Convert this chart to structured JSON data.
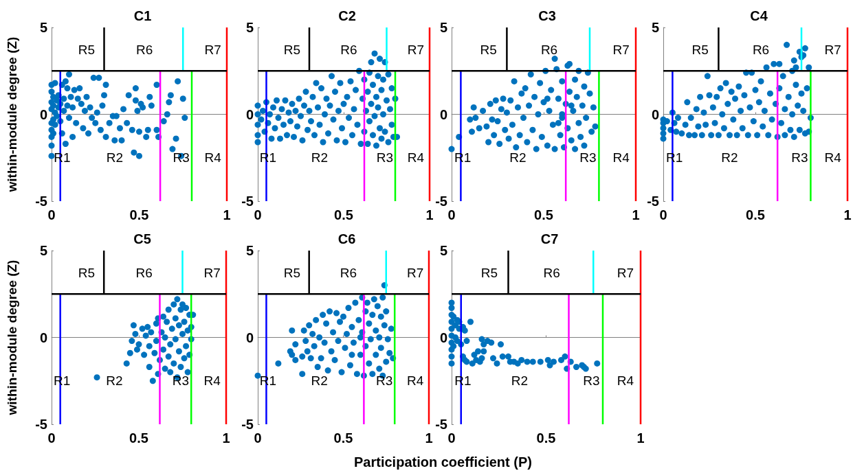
{
  "chart_data": [
    {
      "type": "scatter",
      "title": "C1",
      "ylabel": "within-module degree (Z)",
      "xlim": [
        0,
        1
      ],
      "ylim": [
        -5,
        5
      ],
      "xticks": [
        0,
        0.5,
        1
      ],
      "yticks": [
        -5,
        0,
        5
      ],
      "series": [
        {
          "marker": "circle",
          "color": "#0072bd",
          "x": [
            0,
            0,
            0,
            0,
            0,
            0,
            0,
            0,
            0,
            0.01,
            0.01,
            0.01,
            0.01,
            0.02,
            0.02,
            0.02,
            0.03,
            0.03,
            0.04,
            0.04,
            0.05,
            0.05,
            0.06,
            0.06,
            0.07,
            0.07,
            0.08,
            0.08,
            0.09,
            0.09,
            0.1,
            0.1,
            0.11,
            0.12,
            0.12,
            0.13,
            0.14,
            0.15,
            0.16,
            0.17,
            0.18,
            0.19,
            0.2,
            0.21,
            0.22,
            0.23,
            0.24,
            0.25,
            0.26,
            0.27,
            0.28,
            0.29,
            0.3,
            0.31,
            0.31,
            0.33,
            0.35,
            0.36,
            0.37,
            0.39,
            0.4,
            0.41,
            0.43,
            0.44,
            0.46,
            0.47,
            0.48,
            0.48,
            0.49,
            0.5,
            0.5,
            0.51,
            0.52,
            0.54,
            0.55,
            0.56,
            0.57,
            0.6,
            0.6,
            0.61,
            0.64,
            0.66,
            0.67,
            0.68,
            0.69,
            0.71,
            0.72,
            0.74,
            0.75,
            0.76
          ],
          "values": [
            -2.4,
            -1.8,
            -1.3,
            -0.9,
            -0.5,
            0.3,
            0.7,
            1.3,
            1.7,
            -1.1,
            -0.3,
            0.5,
            1.0,
            1.8,
            0.1,
            -0.6,
            0.8,
            -0.1,
            0.4,
            1.1,
            -0.4,
            0.6,
            -1.1,
            1.7,
            0.2,
            0.9,
            1.9,
            -1.7,
            1.5,
            0.5,
            2.3,
            -0.2,
            1.0,
            0.4,
            -1.3,
            1.4,
            -0.5,
            0.9,
            1.5,
            0.6,
            -0.8,
            0.2,
            1.0,
            -1.1,
            0.4,
            -0.2,
            2.1,
            -0.5,
            0.1,
            2.1,
            -0.9,
            0.5,
            1.1,
            -1.3,
            1.7,
            -0.5,
            -0.1,
            -1.5,
            -0.1,
            -0.8,
            -1.5,
            0.3,
            -0.5,
            1.1,
            -0.9,
            -2.2,
            1.5,
            0.8,
            0.2,
            -1.0,
            -2.4,
            0.6,
            0.4,
            -1.3,
            -0.9,
            1.0,
            0.5,
            -0.9,
            1.7,
            -1.3,
            -0.4,
            0.0,
            0.7,
            1.1,
            -2.0,
            -1.4,
            1.9,
            -2.4,
            0.9,
            -0.2
          ]
        },
        {
          "type": "line",
          "color": "#0000ff",
          "x": [
            0.05,
            0.05
          ],
          "values": [
            -5,
            2.5
          ]
        },
        {
          "type": "line",
          "color": "#ff00ff",
          "x": [
            0.62,
            0.62
          ],
          "values": [
            -5,
            2.5
          ]
        },
        {
          "type": "line",
          "color": "#00ff00",
          "x": [
            0.8,
            0.8
          ],
          "values": [
            -5,
            2.5
          ]
        },
        {
          "type": "line",
          "color": "#ff0000",
          "x": [
            1,
            1
          ],
          "values": [
            -5,
            5
          ]
        },
        {
          "type": "line",
          "color": "#000000",
          "x": [
            0.3,
            0.3
          ],
          "values": [
            2.5,
            5
          ]
        },
        {
          "type": "line",
          "color": "#00ffff",
          "x": [
            0.75,
            0.75
          ],
          "values": [
            2.5,
            5
          ]
        },
        {
          "type": "line",
          "color": "#000000",
          "x": [
            0,
            1
          ],
          "values": [
            2.5,
            2.5
          ]
        }
      ],
      "annotations": [
        "R1",
        "R2",
        "R3",
        "R4",
        "R5",
        "R6",
        "R7"
      ]
    },
    {
      "type": "scatter",
      "title": "C2",
      "xlim": [
        0,
        1
      ],
      "ylim": [
        -5,
        5
      ],
      "xticks": [
        0,
        0.5,
        1
      ],
      "yticks": [
        -5,
        0,
        5
      ],
      "series": [
        {
          "marker": "circle",
          "color": "#0072bd",
          "x": [
            0,
            0,
            0,
            0,
            0,
            0.02,
            0.03,
            0.04,
            0.05,
            0.06,
            0.07,
            0.08,
            0.09,
            0.1,
            0.11,
            0.12,
            0.13,
            0.14,
            0.15,
            0.16,
            0.17,
            0.18,
            0.19,
            0.2,
            0.21,
            0.22,
            0.23,
            0.24,
            0.25,
            0.26,
            0.27,
            0.28,
            0.29,
            0.3,
            0.31,
            0.32,
            0.33,
            0.34,
            0.35,
            0.36,
            0.37,
            0.38,
            0.39,
            0.4,
            0.41,
            0.42,
            0.43,
            0.44,
            0.45,
            0.46,
            0.47,
            0.48,
            0.49,
            0.5,
            0.51,
            0.52,
            0.53,
            0.54,
            0.55,
            0.56,
            0.57,
            0.58,
            0.59,
            0.6,
            0.61,
            0.62,
            0.62,
            0.63,
            0.64,
            0.64,
            0.65,
            0.65,
            0.66,
            0.66,
            0.67,
            0.67,
            0.68,
            0.68,
            0.69,
            0.69,
            0.7,
            0.7,
            0.71,
            0.71,
            0.72,
            0.72,
            0.73,
            0.73,
            0.74,
            0.74,
            0.75,
            0.76,
            0.76,
            0.77,
            0.78,
            0.78,
            0.79,
            0.8,
            0.81
          ],
          "values": [
            -1.6,
            -1.2,
            -0.6,
            0,
            0.5,
            -0.3,
            0.2,
            -1.0,
            0.7,
            -0.5,
            0.0,
            -1.4,
            0.4,
            -0.8,
            0.8,
            -0.2,
            -1.4,
            0.3,
            -0.6,
            0.8,
            -1.2,
            0.1,
            -0.4,
            0.6,
            -1.3,
            0.2,
            -0.7,
            0.9,
            -0.1,
            -1.5,
            0.5,
            1.3,
            -0.9,
            0.2,
            -0.4,
            1.0,
            -1.2,
            1.8,
            0.4,
            -0.6,
            1.5,
            -1.6,
            0.0,
            0.9,
            -1.1,
            0.5,
            2.2,
            -0.3,
            1.3,
            -1.5,
            0.2,
            1.8,
            -0.8,
            0.6,
            -1.6,
            1.0,
            -0.2,
            1.9,
            -1.2,
            0.3,
            1.4,
            -0.6,
            2.5,
            -1.7,
            0.9,
            -1.0,
            2.0,
            0.2,
            -1.7,
            1.3,
            -0.4,
            2.4,
            0.6,
            3.0,
            -1.2,
            1.7,
            3.5,
            -0.1,
            1.0,
            -1.8,
            2.2,
            0.4,
            3.2,
            -0.8,
            1.4,
            -1.4,
            0.0,
            2.0,
            3.0,
            -1.0,
            0.8,
            2.3,
            -1.6,
            0.3,
            1.5,
            -0.6,
            -1.3,
            0.9,
            -1.3
          ]
        },
        {
          "type": "line",
          "color": "#0000ff",
          "x": [
            0.05,
            0.05
          ],
          "values": [
            -5,
            2.5
          ]
        },
        {
          "type": "line",
          "color": "#ff00ff",
          "x": [
            0.62,
            0.62
          ],
          "values": [
            -5,
            2.5
          ]
        },
        {
          "type": "line",
          "color": "#00ff00",
          "x": [
            0.8,
            0.8
          ],
          "values": [
            -5,
            2.5
          ]
        },
        {
          "type": "line",
          "color": "#ff0000",
          "x": [
            1,
            1
          ],
          "values": [
            -5,
            5
          ]
        },
        {
          "type": "line",
          "color": "#000000",
          "x": [
            0.3,
            0.3
          ],
          "values": [
            2.5,
            5
          ]
        },
        {
          "type": "line",
          "color": "#00ffff",
          "x": [
            0.75,
            0.75
          ],
          "values": [
            2.5,
            5
          ]
        },
        {
          "type": "line",
          "color": "#000000",
          "x": [
            0,
            1
          ],
          "values": [
            2.5,
            2.5
          ]
        }
      ],
      "annotations": [
        "R1",
        "R2",
        "R3",
        "R4",
        "R5",
        "R6",
        "R7"
      ]
    },
    {
      "type": "scatter",
      "title": "C3",
      "xlim": [
        0,
        1
      ],
      "ylim": [
        -5,
        5
      ],
      "xticks": [
        0,
        0.5,
        1
      ],
      "yticks": [
        -5,
        0,
        5
      ],
      "series": [
        {
          "marker": "circle",
          "color": "#0072bd",
          "x": [
            0,
            0.04,
            0.1,
            0.11,
            0.12,
            0.13,
            0.15,
            0.17,
            0.19,
            0.2,
            0.21,
            0.22,
            0.23,
            0.24,
            0.25,
            0.26,
            0.27,
            0.28,
            0.29,
            0.3,
            0.31,
            0.32,
            0.33,
            0.34,
            0.35,
            0.36,
            0.37,
            0.38,
            0.39,
            0.4,
            0.41,
            0.42,
            0.43,
            0.44,
            0.45,
            0.46,
            0.47,
            0.48,
            0.49,
            0.5,
            0.51,
            0.52,
            0.53,
            0.54,
            0.55,
            0.56,
            0.56,
            0.57,
            0.58,
            0.59,
            0.6,
            0.6,
            0.61,
            0.62,
            0.63,
            0.63,
            0.64,
            0.64,
            0.65,
            0.66,
            0.67,
            0.67,
            0.68,
            0.69,
            0.69,
            0.7,
            0.71,
            0.72,
            0.72,
            0.73,
            0.74,
            0.75,
            0.76,
            0.77,
            0.78,
            0.6,
            0.65,
            0.58,
            0.52
          ],
          "values": [
            -2.0,
            -1.3,
            -0.3,
            -1.0,
            0.4,
            -0.2,
            -0.8,
            0.2,
            -0.7,
            -1.6,
            0.6,
            -0.3,
            -1.2,
            0.8,
            -0.4,
            -1.7,
            0.3,
            0.9,
            -0.9,
            0.1,
            -1.4,
            0.8,
            -0.6,
            1.9,
            -1.9,
            0.4,
            -1.2,
            1.2,
            -0.2,
            1.5,
            -1.6,
            0.5,
            2.3,
            -0.9,
            1.0,
            -2.0,
            0.0,
            1.8,
            -1.3,
            0.7,
            2.5,
            -1.8,
            0.2,
            1.4,
            -0.6,
            3.2,
            -2.0,
            2.6,
            0.9,
            -1.2,
            1.9,
            -0.2,
            -1.9,
            0.6,
            2.8,
            -0.8,
            1.3,
            2.9,
            -1.5,
            0.2,
            2.0,
            -2.0,
            1.0,
            -0.5,
            2.5,
            -1.3,
            0.5,
            1.6,
            -1.8,
            -0.2,
            2.4,
            1.2,
            -1.0,
            0.4,
            -0.7,
            0.0,
            0.5,
            -0.5,
            0.9
          ]
        },
        {
          "type": "line",
          "color": "#0000ff",
          "x": [
            0.05,
            0.05
          ],
          "values": [
            -5,
            2.5
          ]
        },
        {
          "type": "line",
          "color": "#ff00ff",
          "x": [
            0.62,
            0.62
          ],
          "values": [
            -5,
            2.5
          ]
        },
        {
          "type": "line",
          "color": "#00ff00",
          "x": [
            0.8,
            0.8
          ],
          "values": [
            -5,
            2.5
          ]
        },
        {
          "type": "line",
          "color": "#ff0000",
          "x": [
            1,
            1
          ],
          "values": [
            -5,
            5
          ]
        },
        {
          "type": "line",
          "color": "#000000",
          "x": [
            0.3,
            0.3
          ],
          "values": [
            2.5,
            5
          ]
        },
        {
          "type": "line",
          "color": "#00ffff",
          "x": [
            0.75,
            0.75
          ],
          "values": [
            2.5,
            5
          ]
        },
        {
          "type": "line",
          "color": "#000000",
          "x": [
            0,
            1
          ],
          "values": [
            2.5,
            2.5
          ]
        }
      ],
      "annotations": [
        "R1",
        "R2",
        "R3",
        "R4",
        "R5",
        "R6",
        "R7"
      ]
    },
    {
      "type": "scatter",
      "title": "C4",
      "xlim": [
        0,
        1
      ],
      "ylim": [
        -5,
        5
      ],
      "xticks": [
        0,
        0.5,
        1
      ],
      "yticks": [
        -5,
        0,
        5
      ],
      "series": [
        {
          "marker": "circle",
          "color": "#0072bd",
          "x": [
            0,
            0,
            0,
            0,
            0,
            0.02,
            0.04,
            0.05,
            0.06,
            0.07,
            0.08,
            0.1,
            0.12,
            0.13,
            0.14,
            0.15,
            0.17,
            0.18,
            0.19,
            0.2,
            0.21,
            0.22,
            0.23,
            0.24,
            0.25,
            0.26,
            0.27,
            0.28,
            0.29,
            0.3,
            0.31,
            0.32,
            0.33,
            0.34,
            0.35,
            0.36,
            0.37,
            0.38,
            0.39,
            0.4,
            0.41,
            0.42,
            0.43,
            0.44,
            0.45,
            0.46,
            0.47,
            0.48,
            0.49,
            0.5,
            0.51,
            0.52,
            0.53,
            0.54,
            0.55,
            0.56,
            0.57,
            0.58,
            0.59,
            0.6,
            0.61,
            0.62,
            0.63,
            0.63,
            0.64,
            0.65,
            0.66,
            0.66,
            0.67,
            0.68,
            0.69,
            0.7,
            0.7,
            0.71,
            0.71,
            0.72,
            0.72,
            0.73,
            0.74,
            0.74,
            0.75,
            0.75,
            0.76,
            0.76,
            0.77,
            0.77,
            0.78,
            0.79,
            0.79,
            0.8
          ],
          "values": [
            -1.4,
            -1.1,
            -0.8,
            -0.5,
            -0.3,
            -0.4,
            -0.9,
            0.1,
            -0.5,
            -1.0,
            -0.2,
            -1.1,
            -0.6,
            0.7,
            -1.2,
            -0.2,
            -1.2,
            0.3,
            -0.7,
            1.0,
            -1.2,
            0.1,
            -0.6,
            2.2,
            1.1,
            -1.2,
            0.4,
            -0.5,
            1.0,
            -1.2,
            1.5,
            0.0,
            -0.8,
            1.8,
            0.6,
            -1.2,
            1.3,
            -0.3,
            0.9,
            -1.2,
            1.6,
            0.2,
            -0.8,
            1.1,
            2.4,
            -1.2,
            0.4,
            2.4,
            -0.4,
            1.4,
            -1.2,
            0.7,
            1.9,
            -0.7,
            0.2,
            2.7,
            -1.2,
            1.2,
            -0.3,
            2.9,
            0.6,
            -1.3,
            2.9,
            1.5,
            -0.5,
            2.2,
            0.3,
            -1.2,
            4.0,
            1.0,
            -0.9,
            2.5,
            0.0,
            3.1,
            -1.3,
            1.7,
            2.7,
            0.5,
            3.6,
            -0.9,
            1.2,
            3.3,
            3.4,
            0.2,
            3.8,
            -1.1,
            1.5,
            2.7,
            -1.0,
            -0.2
          ]
        },
        {
          "type": "line",
          "color": "#0000ff",
          "x": [
            0.05,
            0.05
          ],
          "values": [
            -5,
            2.5
          ]
        },
        {
          "type": "line",
          "color": "#ff00ff",
          "x": [
            0.62,
            0.62
          ],
          "values": [
            -5,
            2.5
          ]
        },
        {
          "type": "line",
          "color": "#00ff00",
          "x": [
            0.8,
            0.8
          ],
          "values": [
            -5,
            2.5
          ]
        },
        {
          "type": "line",
          "color": "#ff0000",
          "x": [
            1,
            1
          ],
          "values": [
            -5,
            5
          ]
        },
        {
          "type": "line",
          "color": "#000000",
          "x": [
            0.3,
            0.3
          ],
          "values": [
            2.5,
            5
          ]
        },
        {
          "type": "line",
          "color": "#00ffff",
          "x": [
            0.75,
            0.75
          ],
          "values": [
            2.5,
            5
          ]
        },
        {
          "type": "line",
          "color": "#000000",
          "x": [
            0,
            1
          ],
          "values": [
            2.5,
            2.5
          ]
        }
      ],
      "annotations": [
        "R1",
        "R2",
        "R3",
        "R4",
        "R5",
        "R6",
        "R7"
      ]
    },
    {
      "type": "scatter",
      "title": "C5",
      "ylabel": "within-module degree (Z)",
      "xlim": [
        0,
        1
      ],
      "ylim": [
        -5,
        5
      ],
      "xticks": [
        0,
        0.5,
        1
      ],
      "yticks": [
        -5,
        0,
        5
      ],
      "series": [
        {
          "marker": "circle",
          "color": "#0072bd",
          "x": [
            0.26,
            0.43,
            0.45,
            0.46,
            0.47,
            0.48,
            0.49,
            0.5,
            0.52,
            0.53,
            0.54,
            0.55,
            0.56,
            0.56,
            0.57,
            0.58,
            0.59,
            0.6,
            0.6,
            0.61,
            0.61,
            0.62,
            0.63,
            0.64,
            0.64,
            0.65,
            0.65,
            0.66,
            0.67,
            0.67,
            0.68,
            0.68,
            0.69,
            0.7,
            0.7,
            0.71,
            0.71,
            0.72,
            0.72,
            0.73,
            0.73,
            0.74,
            0.74,
            0.75,
            0.75,
            0.76,
            0.76,
            0.77,
            0.77,
            0.78,
            0.78,
            0.79,
            0.79,
            0.8,
            0.81,
            0.8
          ],
          "values": [
            -2.3,
            -1.5,
            -0.9,
            -0.2,
            0.7,
            0.2,
            -0.7,
            -0.4,
            0.5,
            -1.0,
            0.1,
            0.6,
            -0.5,
            -1.7,
            0.3,
            -2.5,
            -0.9,
            0.8,
            -0.2,
            -2.1,
            1.1,
            -1.3,
            0.3,
            -0.7,
            1.2,
            -1.8,
            0.0,
            0.9,
            -1.1,
            1.6,
            -0.4,
            -2.0,
            0.5,
            1.9,
            -1.5,
            -0.1,
            1.1,
            2.2,
            -2.3,
            0.7,
            -0.8,
            1.6,
            -1.7,
            0.2,
            1.9,
            -1.2,
            0.9,
            1.7,
            -0.5,
            0.4,
            -2.0,
            1.3,
            -1.0,
            0.6,
            1.3,
            -0.1
          ]
        },
        {
          "type": "line",
          "color": "#0000ff",
          "x": [
            0.05,
            0.05
          ],
          "values": [
            -5,
            2.5
          ]
        },
        {
          "type": "line",
          "color": "#ff00ff",
          "x": [
            0.62,
            0.62
          ],
          "values": [
            -5,
            2.5
          ]
        },
        {
          "type": "line",
          "color": "#00ff00",
          "x": [
            0.8,
            0.8
          ],
          "values": [
            -5,
            2.5
          ]
        },
        {
          "type": "line",
          "color": "#ff0000",
          "x": [
            1,
            1
          ],
          "values": [
            -5,
            5
          ]
        },
        {
          "type": "line",
          "color": "#000000",
          "x": [
            0.3,
            0.3
          ],
          "values": [
            2.5,
            5
          ]
        },
        {
          "type": "line",
          "color": "#00ffff",
          "x": [
            0.75,
            0.75
          ],
          "values": [
            2.5,
            5
          ]
        },
        {
          "type": "line",
          "color": "#000000",
          "x": [
            0,
            1
          ],
          "values": [
            2.5,
            2.5
          ]
        }
      ],
      "annotations": [
        "R1",
        "R2",
        "R3",
        "R4",
        "R5",
        "R6",
        "R7"
      ]
    },
    {
      "type": "scatter",
      "title": "C6",
      "xlabel": "Participation coefficient (P)",
      "xlim": [
        0,
        1
      ],
      "ylim": [
        -5,
        5
      ],
      "xticks": [
        0,
        0.5,
        1
      ],
      "yticks": [
        -5,
        0,
        5
      ],
      "series": [
        {
          "marker": "circle",
          "color": "#0072bd",
          "x": [
            0,
            0.12,
            0.19,
            0.2,
            0.2,
            0.22,
            0.22,
            0.26,
            0.26,
            0.27,
            0.28,
            0.29,
            0.3,
            0.31,
            0.32,
            0.33,
            0.34,
            0.35,
            0.36,
            0.37,
            0.38,
            0.39,
            0.4,
            0.41,
            0.42,
            0.43,
            0.44,
            0.45,
            0.46,
            0.47,
            0.48,
            0.49,
            0.5,
            0.51,
            0.52,
            0.53,
            0.54,
            0.55,
            0.56,
            0.57,
            0.58,
            0.59,
            0.6,
            0.61,
            0.61,
            0.62,
            0.63,
            0.63,
            0.64,
            0.65,
            0.65,
            0.66,
            0.67,
            0.67,
            0.68,
            0.69,
            0.69,
            0.7,
            0.71,
            0.71,
            0.72,
            0.72,
            0.73,
            0.73,
            0.74,
            0.74,
            0.75,
            0.75,
            0.76,
            0.77,
            0.78,
            0.79,
            0.6,
            0.55
          ],
          "values": [
            -2.2,
            -1.5,
            -0.8,
            0.4,
            -1.0,
            -0.4,
            -1.3,
            -2.1,
            -1.1,
            0.4,
            -0.2,
            -0.8,
            0.7,
            -1.2,
            0.2,
            -0.5,
            1.0,
            -1.7,
            0.0,
            -1.2,
            1.3,
            -0.3,
            0.8,
            -1.9,
            1.5,
            -0.8,
            0.3,
            -1.3,
            1.4,
            -0.2,
            0.9,
            -2.0,
            1.2,
            -0.6,
            0.2,
            1.7,
            -1.6,
            0.6,
            -0.3,
            2.0,
            -2.1,
            1.0,
            -1.0,
            2.3,
            0.3,
            -2.2,
            1.5,
            -0.5,
            2.0,
            0.8,
            -1.5,
            -0.1,
            1.3,
            -2.1,
            2.2,
            0.4,
            -1.0,
            1.8,
            -1.8,
            0.0,
            1.2,
            -0.6,
            2.3,
            -2.2,
            0.7,
            3.0,
            -1.4,
            1.5,
            -0.1,
            -0.9,
            0.5,
            -1.2,
            0.0,
            -1.0
          ]
        },
        {
          "type": "line",
          "color": "#0000ff",
          "x": [
            0.05,
            0.05
          ],
          "values": [
            -5,
            2.5
          ]
        },
        {
          "type": "line",
          "color": "#ff00ff",
          "x": [
            0.62,
            0.62
          ],
          "values": [
            -5,
            2.5
          ]
        },
        {
          "type": "line",
          "color": "#00ff00",
          "x": [
            0.8,
            0.8
          ],
          "values": [
            -5,
            2.5
          ]
        },
        {
          "type": "line",
          "color": "#ff0000",
          "x": [
            1,
            1
          ],
          "values": [
            -5,
            5
          ]
        },
        {
          "type": "line",
          "color": "#000000",
          "x": [
            0.3,
            0.3
          ],
          "values": [
            2.5,
            5
          ]
        },
        {
          "type": "line",
          "color": "#00ffff",
          "x": [
            0.75,
            0.75
          ],
          "values": [
            2.5,
            5
          ]
        },
        {
          "type": "line",
          "color": "#000000",
          "x": [
            0,
            1
          ],
          "values": [
            2.5,
            2.5
          ]
        }
      ],
      "annotations": [
        "R1",
        "R2",
        "R3",
        "R4",
        "R5",
        "R6",
        "R7"
      ]
    },
    {
      "type": "scatter",
      "title": "C7",
      "xlim": [
        0,
        1
      ],
      "ylim": [
        -5,
        5
      ],
      "xticks": [
        0,
        0.5,
        1
      ],
      "yticks": [
        -5,
        0,
        5
      ],
      "series": [
        {
          "marker": "circle",
          "color": "#0072bd",
          "x": [
            0,
            0,
            0,
            0,
            0,
            0,
            0,
            0,
            0,
            0,
            0.01,
            0.01,
            0.02,
            0.02,
            0.03,
            0.03,
            0.04,
            0.04,
            0.05,
            0.06,
            0.07,
            0.08,
            0.06,
            0.07,
            0.08,
            0.1,
            0.11,
            0.12,
            0.13,
            0.14,
            0.15,
            0.16,
            0.16,
            0.17,
            0.17,
            0.19,
            0.21,
            0.22,
            0.24,
            0.26,
            0.27,
            0.3,
            0.31,
            0.33,
            0.35,
            0.37,
            0.4,
            0.43,
            0.47,
            0.51,
            0.52,
            0.54,
            0.58,
            0.6,
            0.61,
            0.63,
            0.66,
            0.69,
            0.7,
            0.71,
            0.77
          ],
          "values": [
            -1.5,
            -1.1,
            -0.7,
            -0.3,
            0.1,
            0.5,
            0.9,
            1.3,
            1.7,
            2.0,
            1.2,
            -0.5,
            0.7,
            0.0,
            1.0,
            -0.2,
            0.5,
            0.9,
            -0.4,
            0.6,
            0.4,
            -0.2,
            -1.1,
            -1.3,
            -1.4,
            0.9,
            -1.5,
            -1.0,
            -1.3,
            -0.8,
            -1.4,
            -0.1,
            -1.2,
            -0.4,
            -0.8,
            -0.2,
            -0.3,
            -1.2,
            -1.5,
            -0.4,
            -1.1,
            -1.1,
            -1.4,
            -1.4,
            -1.5,
            -1.3,
            -1.4,
            -1.4,
            -1.4,
            -1.3,
            -1.6,
            -1.4,
            -1.3,
            -1.1,
            -1.8,
            -1.4,
            -1.7,
            -1.6,
            -1.7,
            -1.8,
            -1.5
          ]
        },
        {
          "type": "line",
          "color": "#0000ff",
          "x": [
            0.05,
            0.05
          ],
          "values": [
            -5,
            2.5
          ]
        },
        {
          "type": "line",
          "color": "#ff00ff",
          "x": [
            0.62,
            0.62
          ],
          "values": [
            -5,
            2.5
          ]
        },
        {
          "type": "line",
          "color": "#00ff00",
          "x": [
            0.8,
            0.8
          ],
          "values": [
            -5,
            2.5
          ]
        },
        {
          "type": "line",
          "color": "#ff0000",
          "x": [
            1,
            1
          ],
          "values": [
            -5,
            5
          ]
        },
        {
          "type": "line",
          "color": "#000000",
          "x": [
            0.3,
            0.3
          ],
          "values": [
            2.5,
            5
          ]
        },
        {
          "type": "line",
          "color": "#00ffff",
          "x": [
            0.75,
            0.75
          ],
          "values": [
            2.5,
            5
          ]
        },
        {
          "type": "line",
          "color": "#000000",
          "x": [
            0,
            1
          ],
          "values": [
            2.5,
            2.5
          ]
        }
      ],
      "annotations": [
        "R1",
        "R2",
        "R3",
        "R4",
        "R5",
        "R6",
        "R7"
      ]
    }
  ]
}
